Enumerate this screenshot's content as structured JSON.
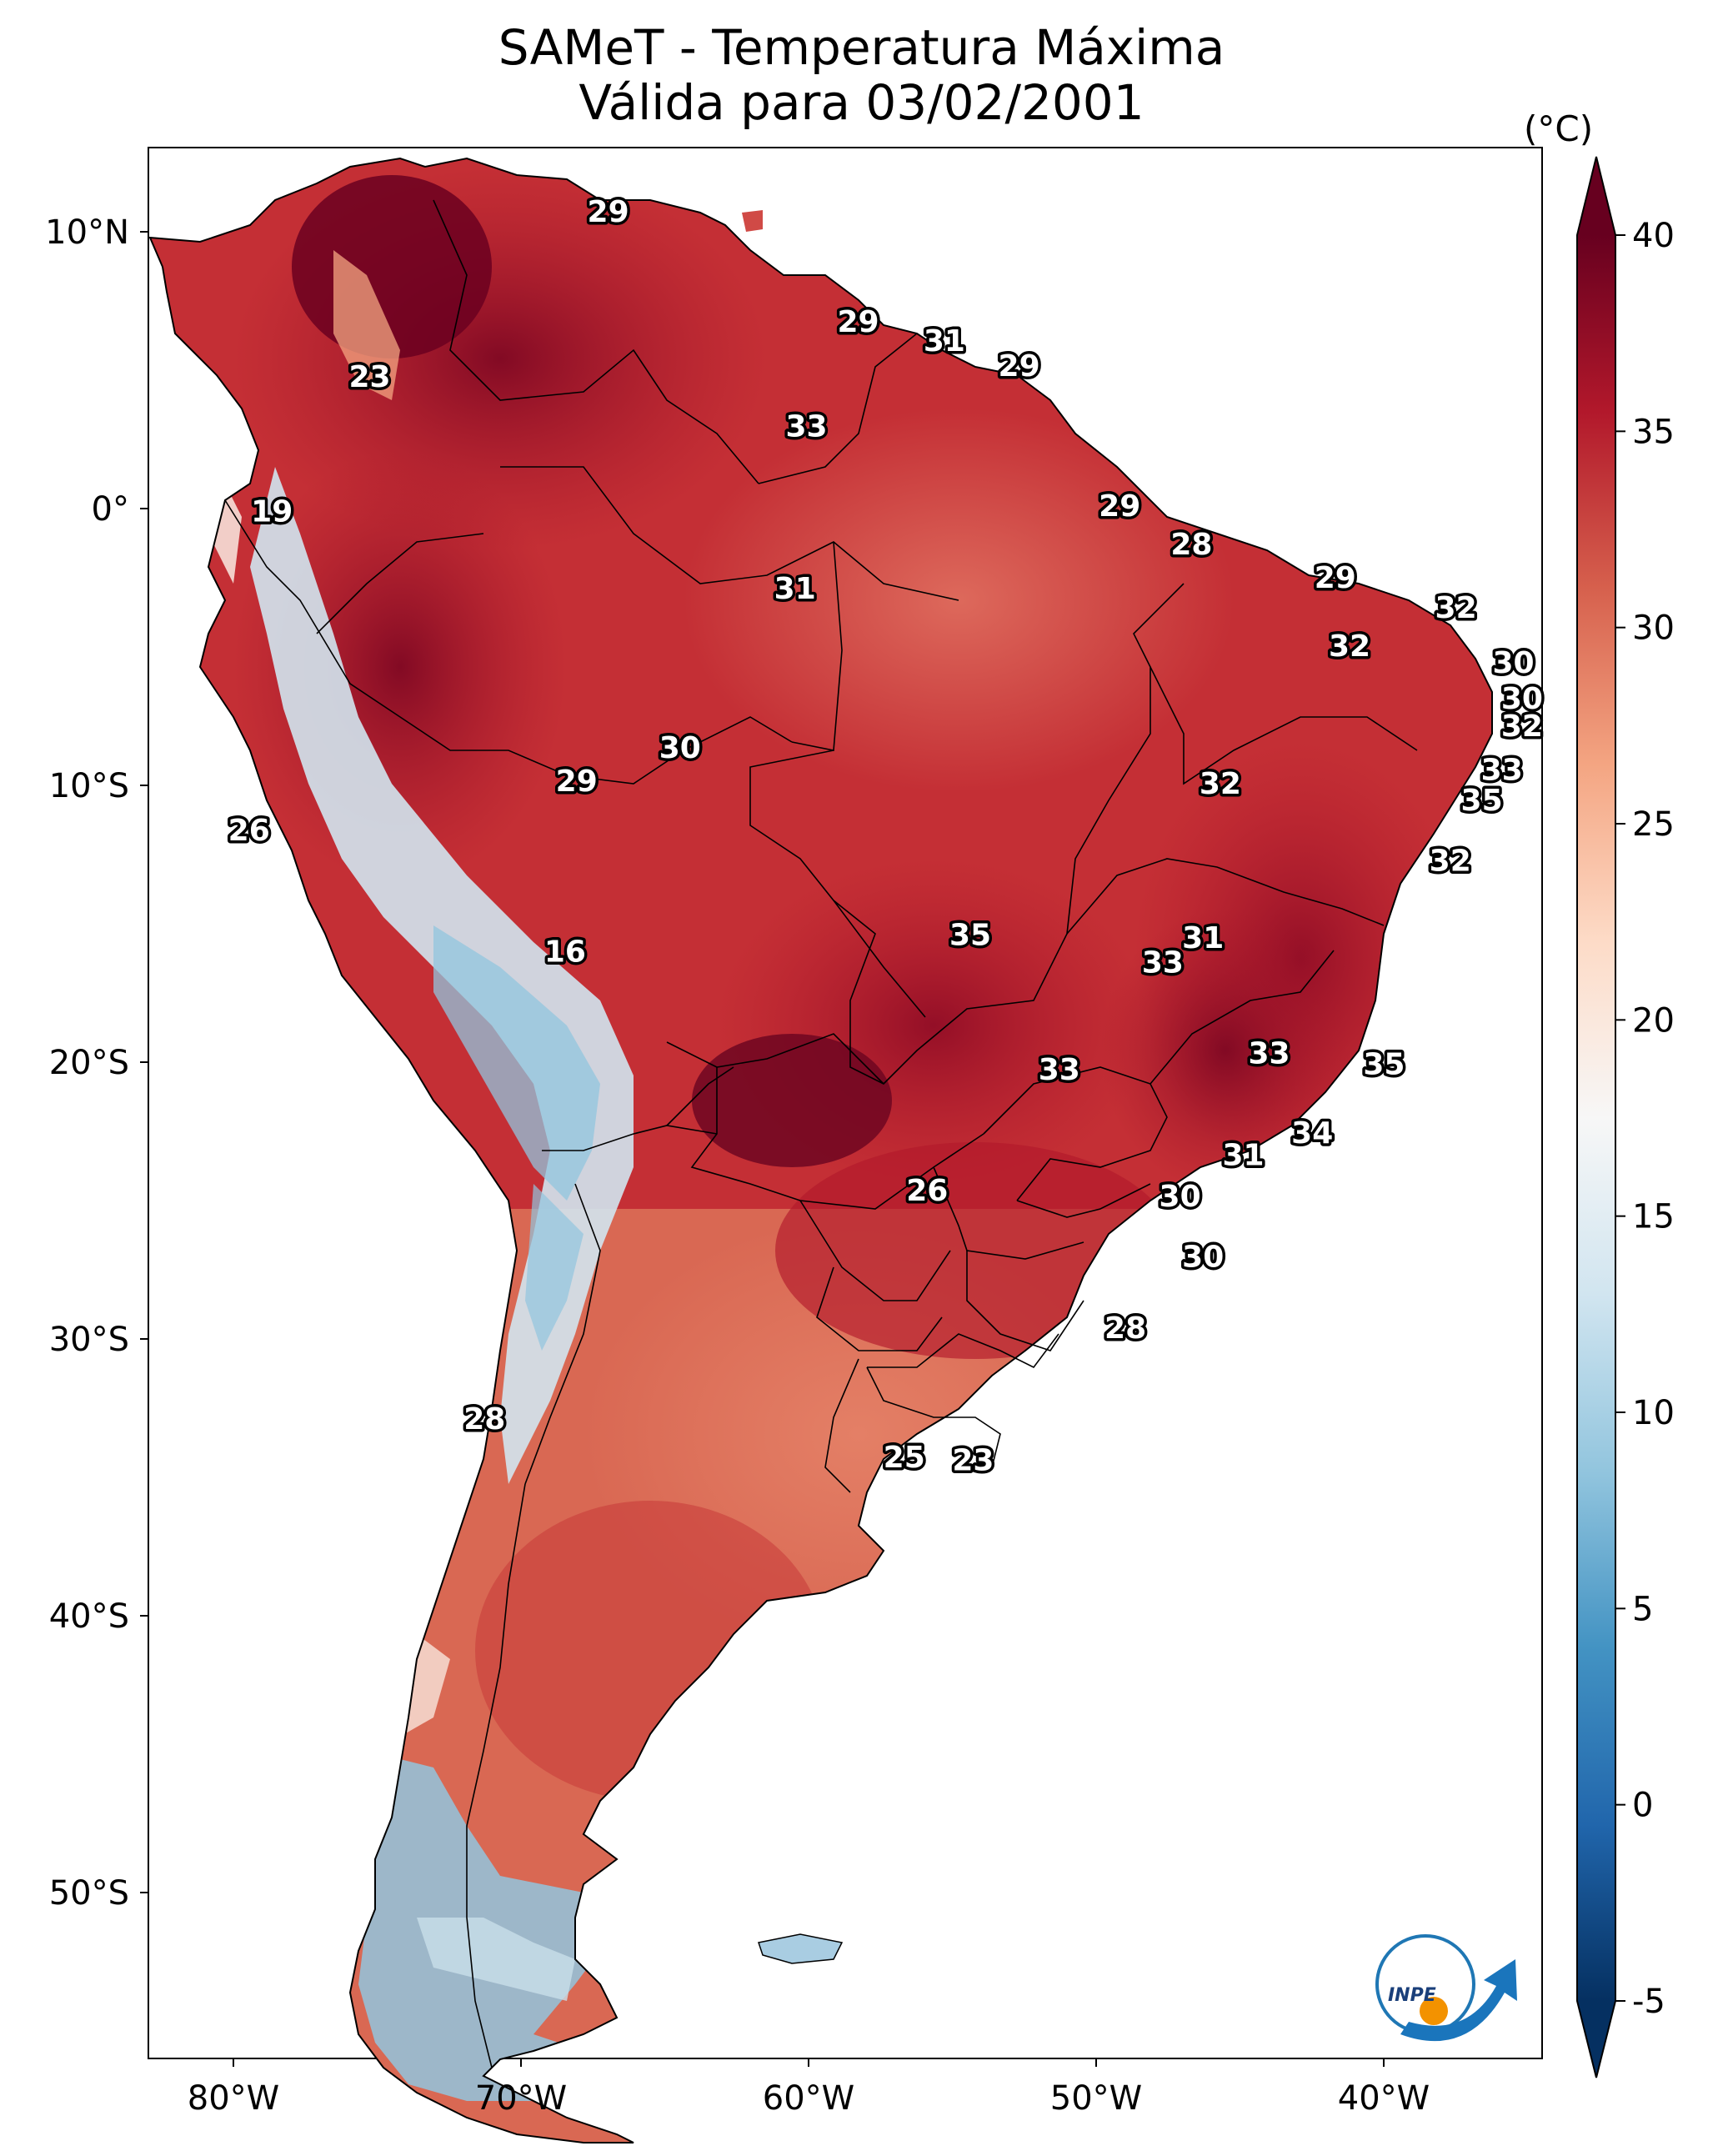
{
  "title": {
    "line1": "SAMeT - Temperatura Máxima",
    "line2": "Válida para 03/02/2001"
  },
  "colorbar": {
    "unit": "(°C)",
    "ticks": [
      "40",
      "35",
      "30",
      "25",
      "20",
      "15",
      "10",
      "5",
      "0",
      "-5"
    ],
    "tick_values": [
      40,
      35,
      30,
      25,
      20,
      15,
      10,
      5,
      0,
      -5
    ],
    "range": [
      -5,
      40
    ],
    "colormap": "RdBu_r",
    "extend": "both",
    "colors": [
      "#053061",
      "#2166ac",
      "#4393c3",
      "#92c5de",
      "#d1e5f0",
      "#f7f7f7",
      "#fddbc7",
      "#f4a582",
      "#d6604d",
      "#b2182b",
      "#67001f"
    ]
  },
  "axes": {
    "lat_labels": [
      "10°N",
      "0°",
      "10°S",
      "20°S",
      "30°S",
      "40°S",
      "50°S"
    ],
    "lat_values": [
      10,
      0,
      -10,
      -20,
      -30,
      -40,
      -50
    ],
    "lon_labels": [
      "80°W",
      "70°W",
      "60°W",
      "50°W",
      "40°W"
    ],
    "lon_values": [
      -80,
      -70,
      -60,
      -50,
      -40
    ],
    "lon_range": [
      -82.5,
      -34
    ],
    "lat_range": [
      -56.5,
      13
    ]
  },
  "chart_data": {
    "type": "heatmap",
    "variable": "Temperatura Máxima",
    "unit": "°C",
    "xlim": [
      -82.5,
      -34
    ],
    "ylim": [
      -56.5,
      13
    ],
    "point_labels": [
      {
        "text": "29",
        "lon": -66.5,
        "lat": 10.6
      },
      {
        "text": "23",
        "lon": -74.8,
        "lat": 4.6
      },
      {
        "text": "29",
        "lon": -57.8,
        "lat": 6.6
      },
      {
        "text": "31",
        "lon": -54.8,
        "lat": 5.9
      },
      {
        "text": "29",
        "lon": -52.2,
        "lat": 5.0
      },
      {
        "text": "33",
        "lon": -59.6,
        "lat": 2.8
      },
      {
        "text": "19",
        "lon": -78.2,
        "lat": -0.3
      },
      {
        "text": "29",
        "lon": -48.7,
        "lat": -0.1
      },
      {
        "text": "28",
        "lon": -46.2,
        "lat": -1.5
      },
      {
        "text": "31",
        "lon": -60.0,
        "lat": -3.1
      },
      {
        "text": "29",
        "lon": -41.2,
        "lat": -2.7
      },
      {
        "text": "32",
        "lon": -37.0,
        "lat": -3.8
      },
      {
        "text": "32",
        "lon": -40.7,
        "lat": -5.2
      },
      {
        "text": "30",
        "lon": -35.0,
        "lat": -5.8
      },
      {
        "text": "30",
        "lon": -34.7,
        "lat": -7.1
      },
      {
        "text": "32",
        "lon": -34.7,
        "lat": -8.1
      },
      {
        "text": "30",
        "lon": -64.0,
        "lat": -8.9
      },
      {
        "text": "29",
        "lon": -67.6,
        "lat": -10.1
      },
      {
        "text": "32",
        "lon": -45.2,
        "lat": -10.2
      },
      {
        "text": "33",
        "lon": -35.4,
        "lat": -9.7
      },
      {
        "text": "35",
        "lon": -36.1,
        "lat": -10.8
      },
      {
        "text": "26",
        "lon": -79.0,
        "lat": -11.9
      },
      {
        "text": "32",
        "lon": -37.2,
        "lat": -13.0
      },
      {
        "text": "31",
        "lon": -45.8,
        "lat": -15.8
      },
      {
        "text": "35",
        "lon": -53.9,
        "lat": -15.7
      },
      {
        "text": "33",
        "lon": -47.2,
        "lat": -16.7
      },
      {
        "text": "16",
        "lon": -68.0,
        "lat": -16.3
      },
      {
        "text": "33",
        "lon": -43.5,
        "lat": -20.0
      },
      {
        "text": "35",
        "lon": -39.5,
        "lat": -20.4
      },
      {
        "text": "33",
        "lon": -50.8,
        "lat": -20.6
      },
      {
        "text": "34",
        "lon": -42.0,
        "lat": -22.9
      },
      {
        "text": "31",
        "lon": -44.4,
        "lat": -23.7
      },
      {
        "text": "30",
        "lon": -46.6,
        "lat": -25.2
      },
      {
        "text": "26",
        "lon": -55.4,
        "lat": -25.0
      },
      {
        "text": "30",
        "lon": -45.8,
        "lat": -27.4
      },
      {
        "text": "28",
        "lon": -48.5,
        "lat": -30.0
      },
      {
        "text": "28",
        "lon": -70.8,
        "lat": -33.3
      },
      {
        "text": "25",
        "lon": -56.2,
        "lat": -34.7
      },
      {
        "text": "23",
        "lon": -53.8,
        "lat": -34.8
      }
    ]
  },
  "logo": {
    "text": "INPE"
  }
}
